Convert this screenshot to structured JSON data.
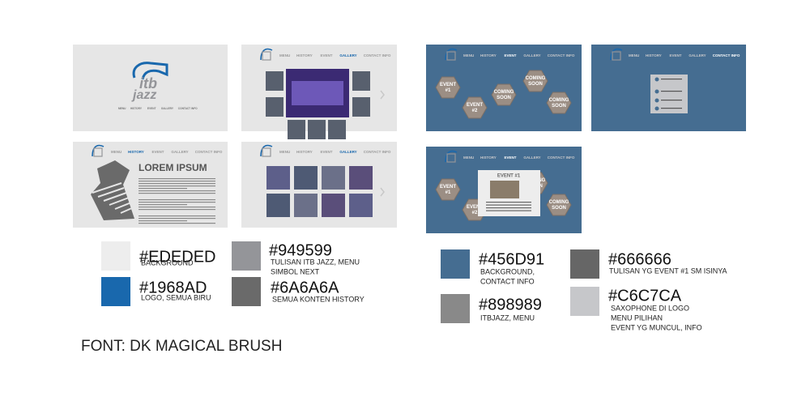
{
  "nav": [
    "MENU",
    "HISTORY",
    "EVENT",
    "GALLERY",
    "CONTACT INFO"
  ],
  "logo": {
    "line1": "itb",
    "line2": "jazz"
  },
  "history_title": "LOREM IPSUM",
  "events": {
    "event1": [
      "EVENT",
      "#1"
    ],
    "event2": [
      "EVENT",
      "#2"
    ],
    "coming_soon": [
      "COMING",
      "SOON"
    ],
    "popup_title": "EVENT #1"
  },
  "swatches": [
    {
      "hex": "#EDEDED",
      "label": [
        "BACKGROUND"
      ]
    },
    {
      "hex": "#949599",
      "label": [
        "TULISAN ITB JAZZ, MENU",
        "SIMBOL NEXT"
      ]
    },
    {
      "hex": "#1968AD",
      "label": [
        "LOGO, SEMUA BIRU"
      ]
    },
    {
      "hex": "#6A6A6A",
      "label": [
        "SEMUA KONTEN HISTORY"
      ]
    },
    {
      "hex": "#456D91",
      "label": [
        "BACKGROUND,",
        "CONTACT INFO"
      ]
    },
    {
      "hex": "#898989",
      "label": [
        "ITBJAZZ, MENU"
      ]
    },
    {
      "hex": "#666666",
      "label": [
        "TULISAN YG EVENT #1 SM ISINYA"
      ]
    },
    {
      "hex": "#C6C7CA",
      "label": [
        "SAXOPHONE DI LOGO",
        "MENU PILIHAN",
        "EVENT YG MUNCUL, INFO"
      ]
    }
  ],
  "font_note": "FONT: DK MAGICAL BRUSH"
}
